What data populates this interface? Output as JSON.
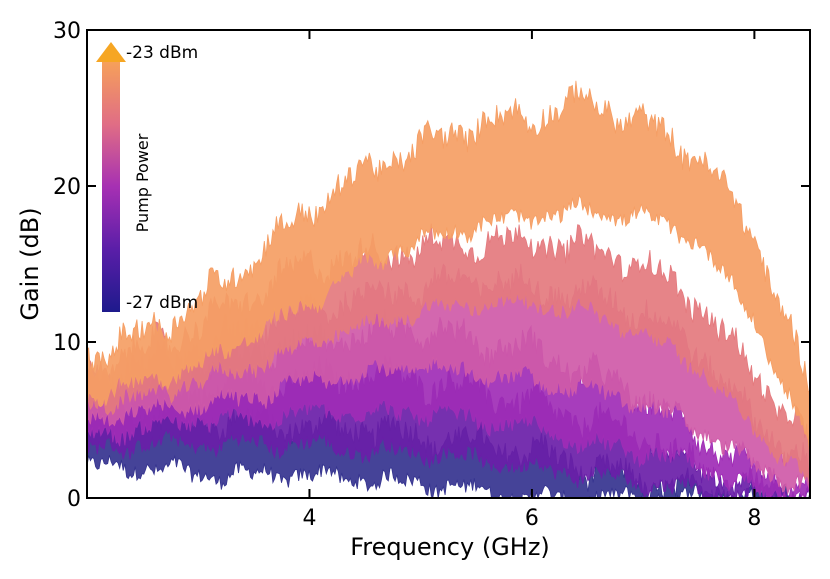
{
  "chart_data": {
    "type": "area",
    "xlabel": "Frequency (GHz)",
    "ylabel": "Gain (dB)",
    "xlim": [
      2.0,
      8.5
    ],
    "ylim": [
      0,
      30
    ],
    "xticks": [
      4,
      6,
      8
    ],
    "yticks": [
      0,
      10,
      20,
      30
    ],
    "grid": false,
    "colorbar": {
      "title": "Pump Power",
      "top_label": "-23 dBm",
      "bottom_label": "-27 dBm",
      "top_color": "#f6a05a",
      "bottom_color": "#1e1a8c",
      "placement": "top-left inside"
    },
    "series": [
      {
        "color": "#35338f",
        "x": [
          2.0,
          2.5,
          3.0,
          3.5,
          4.0,
          4.5,
          5.0,
          5.5,
          6.0,
          6.5,
          7.0,
          7.5,
          8.0,
          8.5
        ],
        "lower": [
          2.0,
          2.0,
          1.5,
          1.5,
          1.5,
          1.2,
          1.0,
          0.5,
          0.0,
          0.0,
          0.0,
          0.0,
          0.0,
          0.0
        ],
        "upper": [
          6.0,
          5.5,
          5.0,
          5.0,
          4.5,
          4.5,
          4.0,
          3.5,
          3.0,
          2.0,
          1.0,
          0.5,
          0.0,
          0.0
        ]
      },
      {
        "color": "#6a1ea8",
        "x": [
          2.0,
          2.5,
          3.0,
          3.5,
          4.0,
          4.5,
          5.0,
          5.5,
          6.0,
          6.5,
          7.0,
          7.5,
          8.0,
          8.5
        ],
        "lower": [
          3.0,
          3.5,
          3.5,
          3.5,
          3.5,
          3.0,
          3.0,
          2.5,
          2.0,
          1.5,
          1.0,
          0.5,
          0.0,
          0.0
        ],
        "upper": [
          6.5,
          6.5,
          7.0,
          7.5,
          7.5,
          8.0,
          7.5,
          7.0,
          6.0,
          5.0,
          4.0,
          2.0,
          0.5,
          0.0
        ]
      },
      {
        "color": "#a02db6",
        "x": [
          2.0,
          2.5,
          3.0,
          3.5,
          4.0,
          4.5,
          5.0,
          5.5,
          6.0,
          6.5,
          7.0,
          7.5,
          8.0,
          8.5
        ],
        "lower": [
          4.0,
          4.5,
          5.0,
          5.0,
          5.5,
          5.5,
          5.5,
          5.0,
          4.5,
          3.5,
          3.0,
          2.0,
          0.5,
          0.0
        ],
        "upper": [
          7.0,
          7.5,
          8.5,
          9.5,
          10.0,
          10.5,
          11.0,
          10.0,
          9.5,
          8.0,
          6.5,
          4.0,
          1.5,
          0.5
        ]
      },
      {
        "color": "#cf5aa8",
        "x": [
          2.0,
          2.5,
          3.0,
          3.5,
          4.0,
          4.5,
          5.0,
          5.5,
          6.0,
          6.5,
          7.0,
          7.5,
          8.0,
          8.5
        ],
        "lower": [
          5.0,
          5.5,
          6.0,
          6.5,
          7.5,
          8.0,
          8.5,
          8.0,
          7.5,
          7.0,
          6.0,
          4.5,
          2.0,
          0.5
        ],
        "upper": [
          7.5,
          8.5,
          9.5,
          11.0,
          12.0,
          13.0,
          13.5,
          14.0,
          13.5,
          13.0,
          12.0,
          9.5,
          5.0,
          2.0
        ]
      },
      {
        "color": "#e47a7e",
        "x": [
          2.0,
          2.5,
          3.0,
          3.5,
          4.0,
          4.5,
          5.0,
          5.5,
          6.0,
          6.5,
          7.0,
          7.5,
          8.0,
          8.5
        ],
        "lower": [
          6.0,
          6.5,
          7.5,
          8.5,
          10.0,
          11.0,
          12.0,
          12.5,
          12.5,
          12.0,
          10.5,
          8.5,
          4.5,
          1.0
        ],
        "upper": [
          8.0,
          9.5,
          11.0,
          13.0,
          15.0,
          15.5,
          16.0,
          16.5,
          16.5,
          16.0,
          15.0,
          12.5,
          8.0,
          3.5
        ]
      },
      {
        "color": "#f59e64",
        "x": [
          2.0,
          2.5,
          3.0,
          3.5,
          4.0,
          4.5,
          5.0,
          5.5,
          6.0,
          6.5,
          7.0,
          7.5,
          8.0,
          8.5
        ],
        "lower": [
          6.5,
          7.5,
          8.5,
          10.5,
          12.5,
          15.0,
          16.5,
          17.5,
          18.0,
          18.5,
          18.0,
          16.5,
          11.5,
          3.0
        ],
        "upper": [
          9.0,
          10.5,
          12.5,
          15.5,
          18.5,
          21.0,
          22.5,
          24.0,
          24.5,
          25.5,
          24.0,
          22.0,
          17.0,
          7.0
        ]
      }
    ]
  }
}
